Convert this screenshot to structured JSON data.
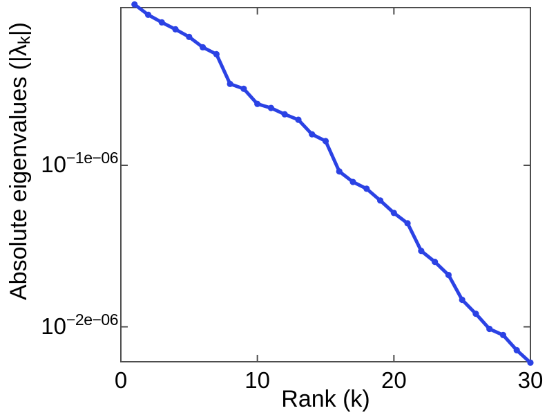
{
  "figure": {
    "background_color": "#ffffff",
    "frame_color": "#4d4d4d",
    "text_color": "#000000"
  },
  "chart_data": {
    "type": "line",
    "title": "",
    "xlabel": "Rank (k)",
    "ylabel": {
      "prefix": "Absolute eigenvalues (|λ",
      "subscript": "k",
      "suffix": "|)"
    },
    "line_color": "#2b42e4",
    "marker": "circle",
    "grid": false,
    "legend": "none",
    "xlim": [
      0,
      30
    ],
    "xticks": [
      0,
      10,
      20,
      30
    ],
    "xtick_labels": [
      "0",
      "10",
      "20",
      "30"
    ],
    "yscale": "log",
    "yticks": [
      {
        "base": "10",
        "exponent_label": "−1e−06",
        "exponent_1e6": -1
      },
      {
        "base": "10",
        "exponent_label": "−2e−06",
        "exponent_1e6": -2
      }
    ],
    "ylim_exponents_1e6": [
      -2.22,
      -0.03
    ],
    "value_rule": "value = 10^(exponent × 1e-06)",
    "x": [
      1,
      2,
      3,
      4,
      5,
      6,
      7,
      8,
      9,
      10,
      11,
      12,
      13,
      14,
      15,
      16,
      17,
      18,
      19,
      20,
      21,
      22,
      23,
      24,
      25,
      26,
      27,
      28,
      29,
      30
    ],
    "y_exponents_1e6": [
      -0.004,
      -0.068,
      -0.115,
      -0.158,
      -0.205,
      -0.269,
      -0.312,
      -0.496,
      -0.526,
      -0.62,
      -0.645,
      -0.684,
      -0.718,
      -0.808,
      -0.85,
      -1.038,
      -1.103,
      -1.145,
      -1.218,
      -1.295,
      -1.359,
      -1.53,
      -1.598,
      -1.679,
      -1.833,
      -1.919,
      -2.013,
      -2.051,
      -2.145,
      -2.222
    ]
  }
}
